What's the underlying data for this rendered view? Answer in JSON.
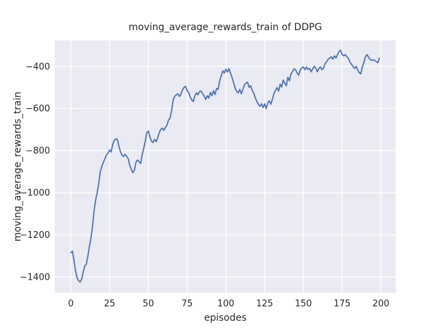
{
  "figure": {
    "title": "moving_average_rewards_train of DDPG",
    "background": "#ffffff"
  },
  "chart_data": {
    "type": "line",
    "title": "moving_average_rewards_train of DDPG",
    "xlabel": "episodes",
    "ylabel": "moving_average_rewards_train",
    "legend": null,
    "grid": true,
    "style": "seaborn-darkgrid",
    "xlim": [
      -10.3,
      209.6
    ],
    "ylim": [
      -1475,
      -277
    ],
    "x_ticks": [
      0,
      25,
      50,
      75,
      100,
      125,
      150,
      175,
      200
    ],
    "y_ticks": [
      -400,
      -600,
      -800,
      -1000,
      -1200,
      -1400
    ],
    "x_start": 0,
    "x_step": 1,
    "series": [
      {
        "name": "moving_average_rewards_train",
        "color": "#4c72b0",
        "values": [
          -1285,
          -1278,
          -1320,
          -1370,
          -1403,
          -1418,
          -1425,
          -1410,
          -1376,
          -1348,
          -1340,
          -1300,
          -1255,
          -1215,
          -1160,
          -1085,
          -1035,
          -1000,
          -955,
          -900,
          -875,
          -855,
          -838,
          -820,
          -812,
          -797,
          -807,
          -770,
          -752,
          -744,
          -748,
          -779,
          -805,
          -823,
          -828,
          -818,
          -827,
          -838,
          -870,
          -890,
          -905,
          -893,
          -856,
          -845,
          -852,
          -862,
          -820,
          -790,
          -755,
          -715,
          -707,
          -735,
          -755,
          -762,
          -747,
          -758,
          -740,
          -715,
          -700,
          -693,
          -704,
          -690,
          -680,
          -655,
          -645,
          -610,
          -560,
          -542,
          -536,
          -530,
          -543,
          -532,
          -512,
          -500,
          -495,
          -515,
          -525,
          -545,
          -560,
          -567,
          -540,
          -526,
          -535,
          -520,
          -518,
          -530,
          -541,
          -557,
          -540,
          -551,
          -524,
          -540,
          -515,
          -534,
          -505,
          -509,
          -470,
          -445,
          -421,
          -432,
          -414,
          -427,
          -411,
          -432,
          -454,
          -477,
          -504,
          -520,
          -526,
          -509,
          -531,
          -509,
          -487,
          -480,
          -475,
          -500,
          -492,
          -515,
          -528,
          -550,
          -567,
          -580,
          -590,
          -578,
          -596,
          -578,
          -601,
          -575,
          -563,
          -580,
          -557,
          -530,
          -514,
          -501,
          -518,
          -485,
          -498,
          -465,
          -480,
          -492,
          -452,
          -469,
          -436,
          -425,
          -412,
          -417,
          -432,
          -442,
          -416,
          -408,
          -403,
          -416,
          -403,
          -415,
          -410,
          -426,
          -412,
          -400,
          -408,
          -426,
          -410,
          -403,
          -416,
          -408,
          -387,
          -378,
          -366,
          -361,
          -355,
          -366,
          -350,
          -361,
          -345,
          -330,
          -323,
          -344,
          -350,
          -344,
          -355,
          -361,
          -380,
          -390,
          -400,
          -410,
          -400,
          -416,
          -430,
          -436,
          -403,
          -383,
          -355,
          -344,
          -356,
          -367,
          -371,
          -370,
          -372,
          -377,
          -383,
          -361
        ]
      }
    ],
    "colors": {
      "plot_background": "#eaeaf2",
      "gridline": "#ffffff",
      "line": "#4c72b0",
      "text": "#262626"
    }
  }
}
